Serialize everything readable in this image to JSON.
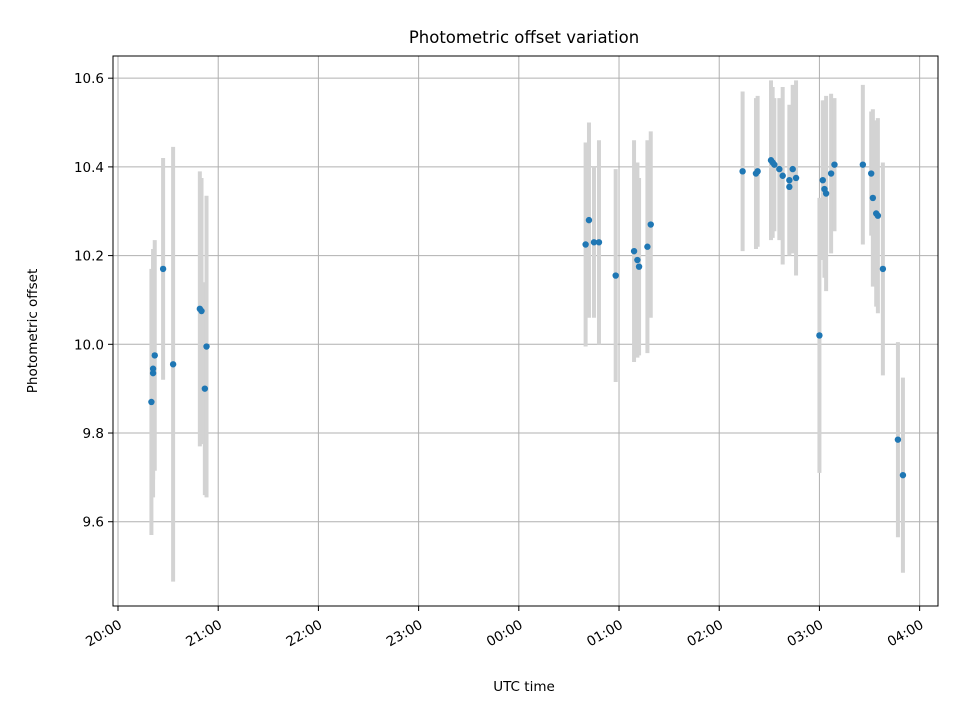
{
  "chart_data": {
    "type": "scatter",
    "title": "Photometric offset variation",
    "xlabel": "UTC time",
    "ylabel": "Photometric offset",
    "grid": true,
    "x_ticks": [
      "20:00",
      "21:00",
      "22:00",
      "23:00",
      "00:00",
      "01:00",
      "02:00",
      "03:00",
      "04:00"
    ],
    "x_tick_minutes": [
      0,
      60,
      120,
      180,
      240,
      300,
      360,
      420,
      480
    ],
    "xlim_minutes": [
      -3,
      491
    ],
    "y_ticks": [
      "9.6",
      "9.8",
      "10.0",
      "10.2",
      "10.4",
      "10.6"
    ],
    "y_tick_values": [
      9.6,
      9.8,
      10.0,
      10.2,
      10.4,
      10.6
    ],
    "ylim": [
      9.41,
      10.65
    ],
    "series": [
      {
        "name": "Photometric offset",
        "x_minutes": [
          20,
          21,
          21,
          22,
          27,
          33,
          49,
          50,
          52,
          53,
          280,
          282,
          285,
          288,
          298,
          309,
          311,
          312,
          317,
          319,
          374,
          382,
          383,
          391,
          392,
          393,
          396,
          398,
          402,
          402,
          404,
          406,
          420,
          422,
          423,
          424,
          427,
          429,
          446,
          451,
          452,
          454,
          455,
          458,
          467,
          470
        ],
        "y": [
          9.87,
          9.945,
          9.935,
          9.975,
          10.17,
          9.955,
          10.08,
          10.075,
          9.9,
          9.995,
          10.225,
          10.28,
          10.23,
          10.23,
          10.155,
          10.21,
          10.19,
          10.175,
          10.22,
          10.27,
          10.39,
          10.385,
          10.39,
          10.415,
          10.41,
          10.405,
          10.395,
          10.38,
          10.37,
          10.355,
          10.395,
          10.375,
          10.02,
          10.37,
          10.35,
          10.34,
          10.385,
          10.405,
          10.405,
          10.385,
          10.33,
          10.295,
          10.29,
          10.17,
          9.785,
          9.705
        ],
        "error": [
          0.3,
          0.25,
          0.28,
          0.26,
          0.25,
          0.49,
          0.31,
          0.3,
          0.24,
          0.34,
          0.23,
          0.22,
          0.17,
          0.23,
          0.24,
          0.25,
          0.22,
          0.2,
          0.24,
          0.21,
          0.18,
          0.17,
          0.17,
          0.18,
          0.17,
          0.15,
          0.16,
          0.2,
          0.17,
          0.15,
          0.19,
          0.22,
          0.31,
          0.18,
          0.2,
          0.22,
          0.18,
          0.15,
          0.18,
          0.14,
          0.2,
          0.21,
          0.22,
          0.24,
          0.22,
          0.22
        ]
      }
    ]
  }
}
